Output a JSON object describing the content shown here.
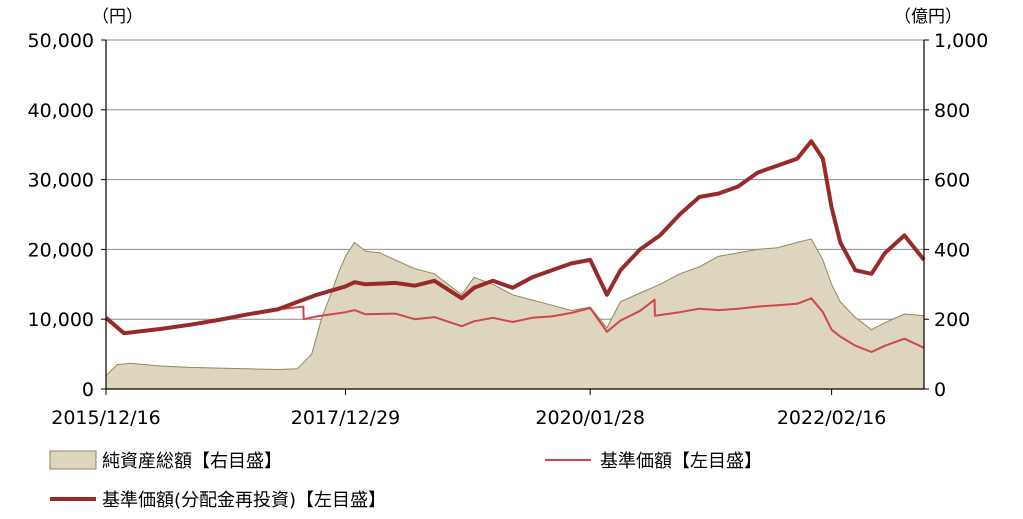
{
  "chart_data": {
    "type": "line",
    "left_axis_unit": "（円）",
    "right_axis_unit": "（億円）",
    "left_ylim": [
      0,
      50000
    ],
    "right_ylim": [
      0,
      1000
    ],
    "left_ticks": [
      "0",
      "10,000",
      "20,000",
      "30,000",
      "40,000",
      "50,000"
    ],
    "right_ticks": [
      "0",
      "200",
      "400",
      "600",
      "800",
      "1,000"
    ],
    "x_tick_labels": [
      "2015/12/16",
      "2017/12/29",
      "2020/01/28",
      "2022/02/16"
    ],
    "x_tick_dates": [
      "2015-12-16",
      "2017-12-29",
      "2020-01-28",
      "2022-02-16"
    ],
    "x_start": "2015-12-16",
    "x_end": "2022-11-30",
    "grid": "horizontal",
    "colors": {
      "nav_fill": "#ddd5bd",
      "nav_stroke": "#8f8a62",
      "price": "#d0464a",
      "price_reinvested": "#982a2a",
      "grid": "#8c8c8c"
    },
    "legend": [
      {
        "label": "純資産総額【右目盛】",
        "type": "area"
      },
      {
        "label": "基準価額【左目盛】",
        "type": "thin-line"
      },
      {
        "label": "基準価額(分配金再投資)【左目盛】",
        "type": "thick-line"
      }
    ],
    "series": [
      {
        "name": "純資産総額【右目盛】",
        "axis": "right",
        "x": [
          "2015-12-16",
          "2016-01-20",
          "2016-03-01",
          "2016-06-01",
          "2016-09-01",
          "2016-12-01",
          "2017-03-01",
          "2017-06-01",
          "2017-08-01",
          "2017-09-15",
          "2017-10-15",
          "2017-11-15",
          "2017-12-10",
          "2017-12-29",
          "2018-01-26",
          "2018-03-01",
          "2018-04-15",
          "2018-06-01",
          "2018-08-01",
          "2018-10-01",
          "2018-12-25",
          "2019-02-01",
          "2019-04-01",
          "2019-06-01",
          "2019-08-01",
          "2019-10-01",
          "2019-12-01",
          "2020-01-28",
          "2020-03-20",
          "2020-05-01",
          "2020-07-01",
          "2020-09-01",
          "2020-11-01",
          "2021-01-01",
          "2021-03-01",
          "2021-05-01",
          "2021-07-01",
          "2021-09-01",
          "2021-11-01",
          "2021-12-15",
          "2022-01-20",
          "2022-02-16",
          "2022-03-15",
          "2022-05-01",
          "2022-06-20",
          "2022-08-01",
          "2022-09-30",
          "2022-11-30"
        ],
        "values": [
          38,
          70,
          74,
          66,
          62,
          60,
          58,
          56,
          58,
          100,
          200,
          275,
          340,
          380,
          420,
          395,
          390,
          370,
          345,
          330,
          270,
          320,
          300,
          270,
          255,
          240,
          225,
          235,
          175,
          250,
          275,
          300,
          330,
          350,
          380,
          390,
          400,
          405,
          420,
          430,
          370,
          300,
          250,
          205,
          170,
          190,
          215,
          210
        ]
      },
      {
        "name": "基準価額【左目盛】",
        "axis": "left",
        "x": [
          "2015-12-16",
          "2016-02-10",
          "2016-06-01",
          "2016-09-01",
          "2016-12-01",
          "2017-03-01",
          "2017-06-01",
          "2017-08-20",
          "2017-08-21",
          "2017-10-01",
          "2017-12-29",
          "2018-01-26",
          "2018-03-01",
          "2018-06-01",
          "2018-08-01",
          "2018-10-01",
          "2018-12-25",
          "2019-02-01",
          "2019-04-01",
          "2019-06-01",
          "2019-08-01",
          "2019-10-01",
          "2019-12-01",
          "2020-01-28",
          "2020-03-20",
          "2020-05-01",
          "2020-07-01",
          "2020-08-15",
          "2020-08-16",
          "2020-11-01",
          "2021-01-01",
          "2021-03-01",
          "2021-05-01",
          "2021-07-01",
          "2021-09-01",
          "2021-11-01",
          "2021-12-15",
          "2022-01-20",
          "2022-02-16",
          "2022-03-15",
          "2022-05-01",
          "2022-06-20",
          "2022-08-01",
          "2022-09-30",
          "2022-11-30"
        ],
        "values": [
          10200,
          8000,
          8600,
          9200,
          9900,
          10700,
          11400,
          11800,
          10000,
          10400,
          11000,
          11300,
          10700,
          10800,
          10000,
          10300,
          9000,
          9700,
          10200,
          9600,
          10200,
          10400,
          10900,
          11600,
          8200,
          9800,
          11200,
          12800,
          10500,
          11000,
          11500,
          11300,
          11500,
          11800,
          12000,
          12200,
          13000,
          11000,
          8500,
          7500,
          6200,
          5300,
          6200,
          7200,
          5900
        ]
      },
      {
        "name": "基準価額(分配金再投資)【左目盛】",
        "axis": "left",
        "x": [
          "2015-12-16",
          "2016-02-10",
          "2016-06-01",
          "2016-09-01",
          "2016-12-01",
          "2017-03-01",
          "2017-06-01",
          "2017-08-20",
          "2017-10-01",
          "2017-12-29",
          "2018-01-26",
          "2018-03-01",
          "2018-06-01",
          "2018-08-01",
          "2018-10-01",
          "2018-12-25",
          "2019-02-01",
          "2019-04-01",
          "2019-06-01",
          "2019-08-01",
          "2019-10-01",
          "2019-12-01",
          "2020-01-28",
          "2020-03-20",
          "2020-05-01",
          "2020-07-01",
          "2020-09-01",
          "2020-11-01",
          "2021-01-01",
          "2021-03-01",
          "2021-05-01",
          "2021-07-01",
          "2021-09-01",
          "2021-11-01",
          "2021-12-15",
          "2022-01-20",
          "2022-02-16",
          "2022-03-15",
          "2022-05-01",
          "2022-06-20",
          "2022-08-01",
          "2022-09-30",
          "2022-11-30"
        ],
        "values": [
          10200,
          8000,
          8600,
          9200,
          9900,
          10700,
          11400,
          12800,
          13500,
          14700,
          15300,
          15000,
          15200,
          14800,
          15500,
          13000,
          14500,
          15500,
          14500,
          16000,
          17000,
          18000,
          18500,
          13500,
          17000,
          20000,
          22000,
          25000,
          27500,
          28000,
          29000,
          31000,
          32000,
          33000,
          35500,
          33000,
          26000,
          21000,
          17000,
          16500,
          19500,
          22000,
          18500
        ]
      }
    ]
  }
}
